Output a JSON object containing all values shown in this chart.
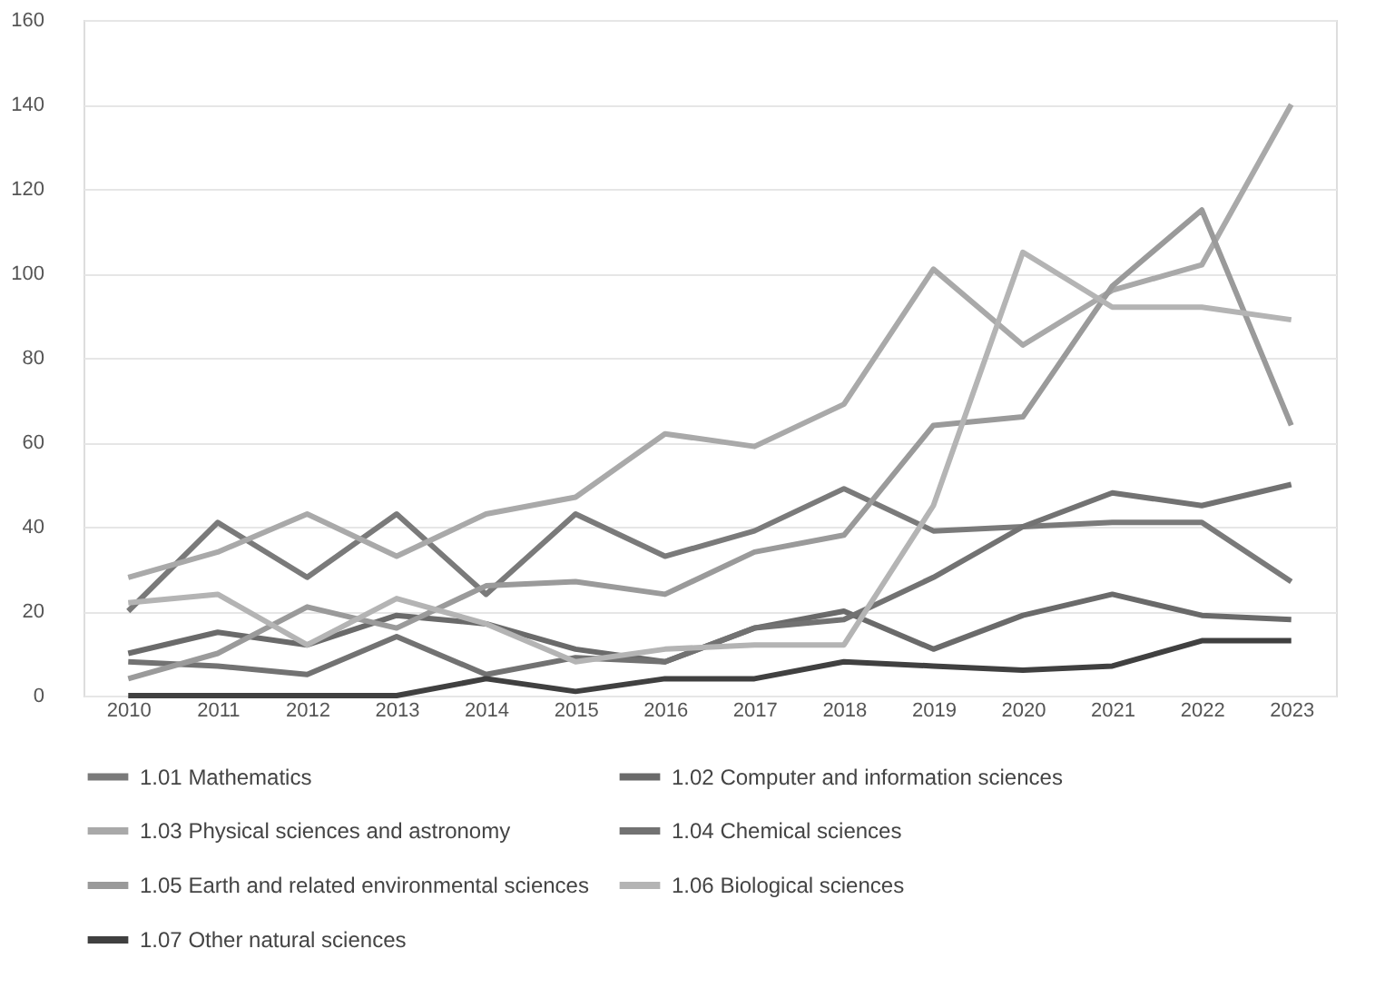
{
  "chart_data": {
    "type": "line",
    "categories": [
      "2010",
      "2011",
      "2012",
      "2013",
      "2014",
      "2015",
      "2016",
      "2017",
      "2018",
      "2019",
      "2020",
      "2021",
      "2022",
      "2023"
    ],
    "series": [
      {
        "name": "1.01 Mathematics",
        "color": "#7a7a7a",
        "values": [
          20,
          41,
          28,
          43,
          24,
          43,
          33,
          39,
          49,
          39,
          40,
          41,
          41,
          27
        ]
      },
      {
        "name": "1.02 Computer and information sciences",
        "color": "#6a6a6a",
        "values": [
          10,
          15,
          12,
          19,
          17,
          11,
          8,
          16,
          20,
          11,
          19,
          24,
          19,
          18
        ]
      },
      {
        "name": "1.03 Physical sciences and astronomy",
        "color": "#a9a9a9",
        "values": [
          28,
          34,
          43,
          33,
          43,
          47,
          62,
          59,
          69,
          101,
          83,
          96,
          102,
          140
        ]
      },
      {
        "name": "1.04 Chemical sciences",
        "color": "#727272",
        "values": [
          8,
          7,
          5,
          14,
          5,
          9,
          8,
          16,
          18,
          28,
          40,
          48,
          45,
          50
        ]
      },
      {
        "name": "1.05 Earth and related environmental sciences",
        "color": "#9a9a9a",
        "values": [
          4,
          10,
          21,
          16,
          26,
          27,
          24,
          34,
          38,
          64,
          66,
          97,
          115,
          64
        ]
      },
      {
        "name": "1.06 Biological sciences",
        "color": "#b4b4b4",
        "values": [
          22,
          24,
          12,
          23,
          17,
          8,
          11,
          12,
          12,
          45,
          105,
          92,
          92,
          89
        ]
      },
      {
        "name": "1.07 Other natural sciences",
        "color": "#404040",
        "values": [
          0,
          0,
          0,
          0,
          4,
          1,
          4,
          4,
          8,
          7,
          6,
          7,
          13,
          13
        ]
      }
    ],
    "ylim": [
      0,
      160
    ],
    "yticks": [
      0,
      20,
      40,
      60,
      80,
      100,
      120,
      140,
      160
    ],
    "grid": "y",
    "legend": "bottom",
    "line_style": "solid",
    "marker": "none"
  }
}
